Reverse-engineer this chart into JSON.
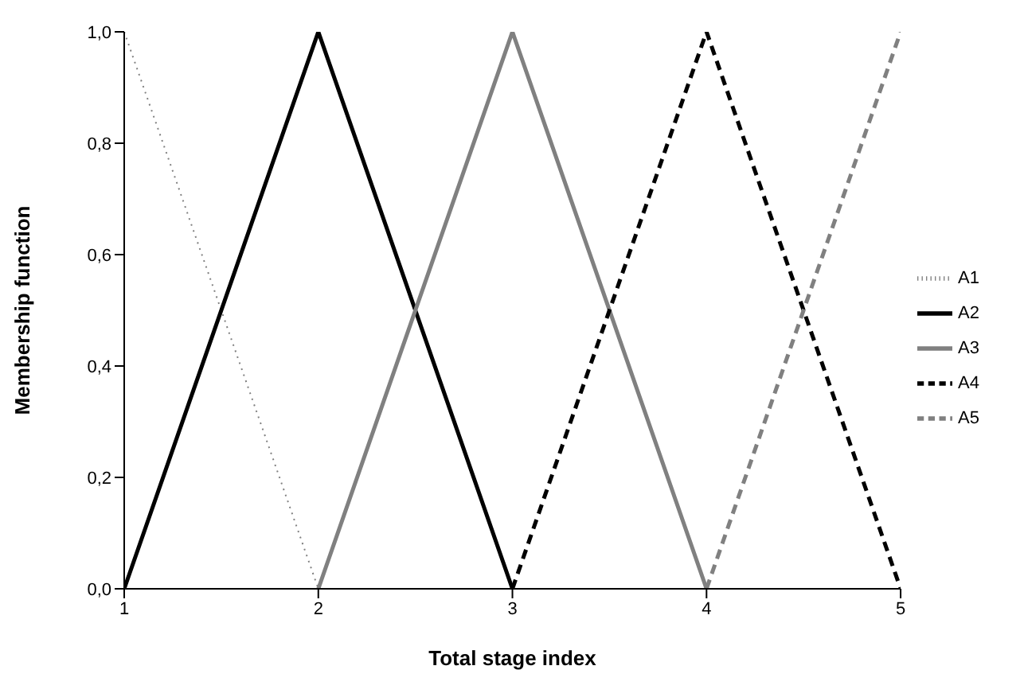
{
  "chart_data": {
    "type": "line",
    "xlabel": "Total stage index",
    "ylabel": "Membership function",
    "xlim": [
      1,
      5
    ],
    "xticks": [
      1,
      2,
      3,
      4,
      5
    ],
    "ylim": [
      0,
      1
    ],
    "yticks": [
      {
        "value": 0,
        "label": "0,0"
      },
      {
        "value": 0.2,
        "label": "0,2"
      },
      {
        "value": 0.4,
        "label": "0,4"
      },
      {
        "value": 0.6,
        "label": "0,6"
      },
      {
        "value": 0.8,
        "label": "0,8"
      },
      {
        "value": 1,
        "label": "1,0"
      }
    ],
    "grid": false,
    "legend": "right",
    "marker": "none",
    "series": [
      {
        "name": "A1",
        "color": "#808080",
        "line_style": "dotted",
        "x": [
          1,
          2
        ],
        "values": [
          1,
          0
        ]
      },
      {
        "name": "A2",
        "color": "#000000",
        "line_style": "solid",
        "x": [
          1,
          2,
          3
        ],
        "values": [
          0,
          1,
          0
        ]
      },
      {
        "name": "A3",
        "color": "#808080",
        "line_style": "solid",
        "x": [
          2,
          3,
          4
        ],
        "values": [
          0,
          1,
          0
        ]
      },
      {
        "name": "A4",
        "color": "#000000",
        "line_style": "dashed",
        "x": [
          3,
          4,
          5
        ],
        "values": [
          0,
          1,
          0
        ]
      },
      {
        "name": "A5",
        "color": "#808080",
        "line_style": "dashed",
        "x": [
          4,
          5
        ],
        "values": [
          0,
          1
        ]
      }
    ]
  }
}
